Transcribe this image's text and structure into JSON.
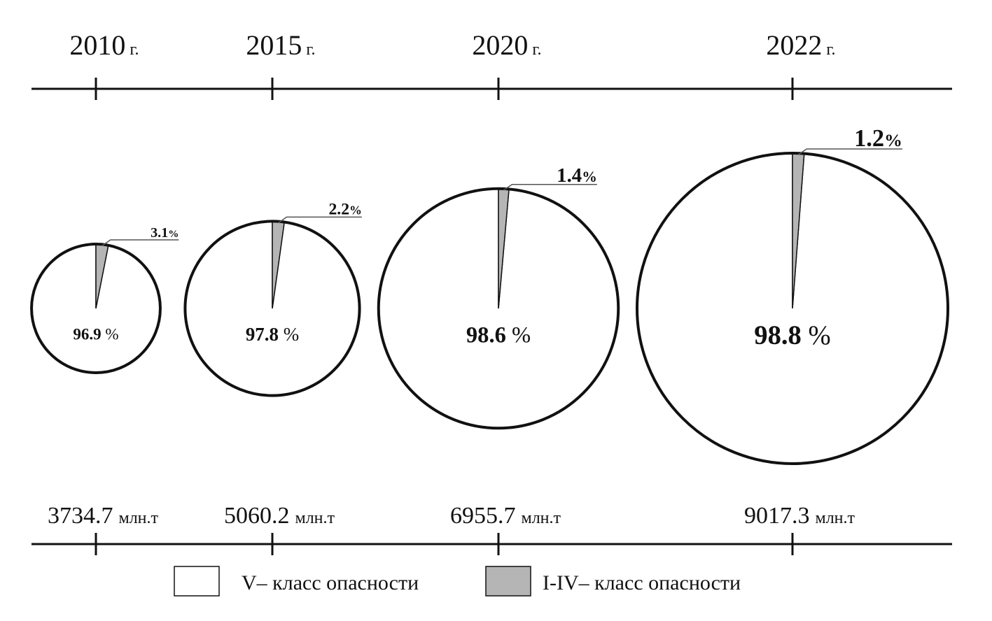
{
  "chart_data": {
    "type": "pie",
    "categories": [
      "2010",
      "2015",
      "2020",
      "2022"
    ],
    "category_unit": "г.",
    "totals": [
      3734.7,
      5060.2,
      6955.7,
      9017.3
    ],
    "total_unit": "млн.т",
    "value_unit": "%",
    "series": [
      {
        "name": "V– класс опасности",
        "color": "#ffffff",
        "values": [
          96.9,
          97.8,
          98.6,
          98.8
        ]
      },
      {
        "name": "I-IV– класс опасности",
        "color": "#b5b5b5",
        "values": [
          3.1,
          2.2,
          1.4,
          1.2
        ]
      }
    ]
  }
}
